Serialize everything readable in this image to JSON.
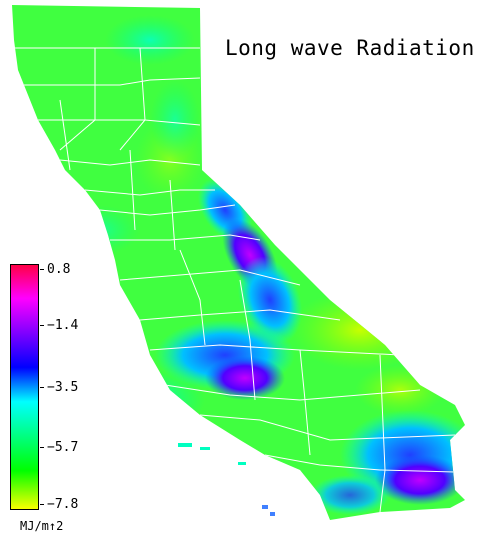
{
  "map": {
    "title": "Long wave Radiation",
    "legend": {
      "ticks": [
        "0.8",
        "−1.4",
        "−3.5",
        "−5.7",
        "−7.8"
      ],
      "units": "MJ/m↑2",
      "colors": [
        "#ff0040",
        "#ff00ff",
        "#8000ff",
        "#0000ff",
        "#00ffff",
        "#00ff80",
        "#00ff00",
        "#ffff00"
      ]
    },
    "colors": {
      "background": "#ffffff",
      "base_fill": "#40ff40",
      "county_lines": "#ffffff"
    }
  }
}
